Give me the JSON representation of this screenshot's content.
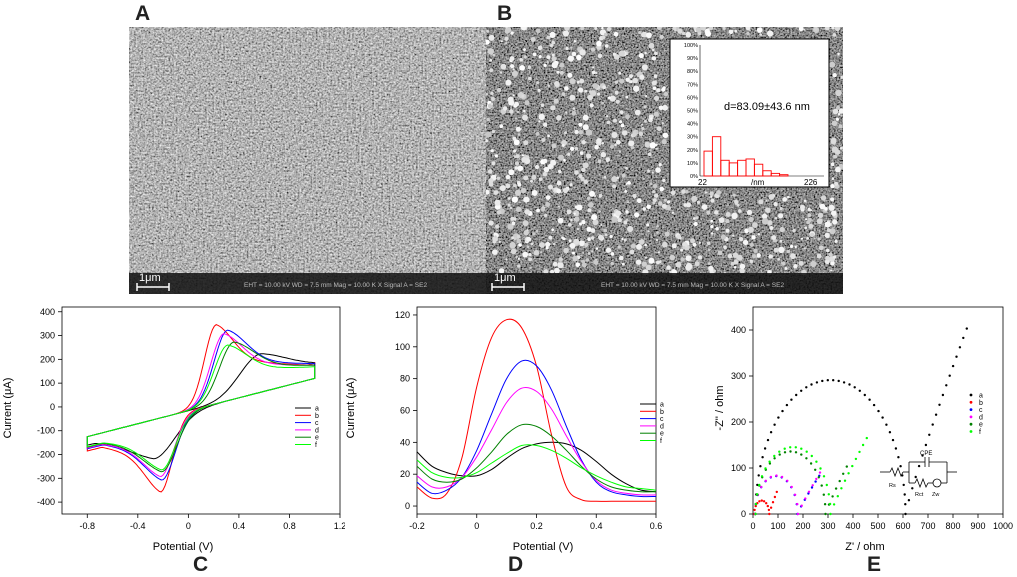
{
  "panel_letters": {
    "a": "A",
    "b": "B",
    "c": "C",
    "d": "D",
    "e": "E"
  },
  "colors": {
    "a": "#000000",
    "b": "#ff0000",
    "c": "#0000ff",
    "d": "#ff00ff",
    "e": "#008000",
    "f": "#00ff00",
    "inset_bars": "#ff0000"
  },
  "sem": {
    "scale_label_a": "1μm",
    "scale_label_b": "1μm",
    "info_text_a": "EHT = 10.00 kV    WD = 7.5 mm    Mag = 10.00 K X    Signal A = SE2",
    "info_text_b": "EHT = 10.00 kV    WD = 7.5 mm    Mag = 10.00 K X    Signal A = SE2"
  },
  "chart_data": [
    {
      "id": "C",
      "type": "line",
      "xlabel": "Potential (V)",
      "ylabel": "Current (μA)",
      "xlim": [
        -1.0,
        1.2
      ],
      "ylim": [
        -450,
        420
      ],
      "xticks": [
        -0.8,
        -0.4,
        0.0,
        0.4,
        0.8,
        1.2
      ],
      "yticks": [
        -400,
        -300,
        -200,
        -100,
        0,
        100,
        200,
        300,
        400
      ],
      "legend_position": "right",
      "series": [
        {
          "name": "a",
          "color": "#000000",
          "anodic_peak": [
            0.57,
            225
          ],
          "cathodic_peak": [
            -0.27,
            -215
          ]
        },
        {
          "name": "b",
          "color": "#ff0000",
          "anodic_peak": [
            0.22,
            348
          ],
          "cathodic_peak": [
            -0.22,
            -355
          ]
        },
        {
          "name": "c",
          "color": "#0000ff",
          "anodic_peak": [
            0.31,
            325
          ],
          "cathodic_peak": [
            -0.21,
            -305
          ]
        },
        {
          "name": "d",
          "color": "#ff00ff",
          "anodic_peak": [
            0.28,
            310
          ],
          "cathodic_peak": [
            -0.22,
            -290
          ]
        },
        {
          "name": "e",
          "color": "#008000",
          "anodic_peak": [
            0.36,
            275
          ],
          "cathodic_peak": [
            -0.21,
            -270
          ]
        },
        {
          "name": "f",
          "color": "#00ff00",
          "anodic_peak": [
            0.31,
            262
          ],
          "cathodic_peak": [
            -0.21,
            -262
          ]
        }
      ]
    },
    {
      "id": "D",
      "type": "line",
      "xlabel": "Potential (V)",
      "ylabel": "Current (μA)",
      "xlim": [
        -0.2,
        0.6
      ],
      "ylim": [
        -5,
        125
      ],
      "xticks": [
        -0.2,
        0.0,
        0.2,
        0.4,
        0.6
      ],
      "yticks": [
        0,
        20,
        40,
        60,
        80,
        100,
        120
      ],
      "legend_position": "right",
      "series": [
        {
          "name": "a",
          "color": "#000000",
          "x": [
            -0.2,
            -0.15,
            -0.1,
            -0.05,
            0.0,
            0.05,
            0.1,
            0.15,
            0.2,
            0.25,
            0.3,
            0.35,
            0.4,
            0.45,
            0.5,
            0.55,
            0.6
          ],
          "y": [
            34,
            25,
            21,
            19,
            19,
            23,
            30,
            36,
            39,
            40,
            39,
            35,
            28,
            20,
            14,
            10,
            9
          ]
        },
        {
          "name": "b",
          "color": "#ff0000",
          "x": [
            -0.2,
            -0.15,
            -0.1,
            -0.05,
            0.0,
            0.05,
            0.1,
            0.15,
            0.2,
            0.25,
            0.3,
            0.35,
            0.4,
            0.45,
            0.5,
            0.55,
            0.6
          ],
          "y": [
            12,
            5,
            8,
            30,
            75,
            106,
            117,
            112,
            88,
            45,
            12,
            4,
            3,
            3,
            3,
            3,
            3
          ]
        },
        {
          "name": "c",
          "color": "#0000ff",
          "x": [
            -0.2,
            -0.15,
            -0.1,
            -0.05,
            0.0,
            0.05,
            0.1,
            0.15,
            0.2,
            0.25,
            0.3,
            0.35,
            0.4,
            0.45,
            0.5,
            0.55,
            0.6
          ],
          "y": [
            15,
            8,
            10,
            18,
            35,
            58,
            80,
            91,
            88,
            73,
            50,
            29,
            15,
            9,
            7,
            6,
            6
          ]
        },
        {
          "name": "d",
          "color": "#ff00ff",
          "x": [
            -0.2,
            -0.15,
            -0.1,
            -0.05,
            0.0,
            0.05,
            0.1,
            0.15,
            0.2,
            0.25,
            0.3,
            0.35,
            0.4,
            0.45,
            0.5,
            0.55,
            0.6
          ],
          "y": [
            19,
            12,
            12,
            18,
            31,
            48,
            65,
            74,
            72,
            61,
            44,
            28,
            16,
            10,
            8,
            7,
            7
          ]
        },
        {
          "name": "e",
          "color": "#008000",
          "x": [
            -0.2,
            -0.15,
            -0.1,
            -0.05,
            0.0,
            0.05,
            0.1,
            0.15,
            0.2,
            0.25,
            0.3,
            0.35,
            0.4,
            0.45,
            0.5,
            0.55,
            0.6
          ],
          "y": [
            25,
            17,
            15,
            17,
            24,
            34,
            45,
            51,
            50,
            44,
            35,
            25,
            17,
            12,
            10,
            9,
            9
          ]
        },
        {
          "name": "f",
          "color": "#00ff00",
          "x": [
            -0.2,
            -0.15,
            -0.1,
            -0.05,
            0.0,
            0.05,
            0.1,
            0.15,
            0.2,
            0.25,
            0.3,
            0.35,
            0.4,
            0.45,
            0.5,
            0.55,
            0.6
          ],
          "y": [
            29,
            21,
            18,
            18,
            21,
            27,
            33,
            38,
            38,
            35,
            30,
            24,
            19,
            15,
            12,
            11,
            10
          ]
        }
      ]
    },
    {
      "id": "E",
      "type": "scatter",
      "xlabel": "Z' / ohm",
      "ylabel": "-Z'' / ohm",
      "xlim": [
        0,
        1000
      ],
      "ylim": [
        0,
        450
      ],
      "xticks": [
        0,
        100,
        200,
        300,
        400,
        500,
        600,
        700,
        800,
        900,
        1000
      ],
      "yticks": [
        0,
        100,
        200,
        300,
        400
      ],
      "legend_position": "right",
      "circuit_labels": {
        "cpe": "CPE",
        "rs": "Rs",
        "rct": "Rct",
        "zw": "Zw"
      },
      "series": [
        {
          "name": "a",
          "color": "#000000",
          "semicircle_diameter": 600,
          "semicircle_start": 10,
          "tail_end": [
            855,
            403
          ]
        },
        {
          "name": "b",
          "color": "#ff0000",
          "semicircle_diameter": 60,
          "semicircle_start": 5,
          "tail_end": [
            95,
            48
          ]
        },
        {
          "name": "c",
          "color": "#0000ff",
          "semicircle_diameter": 170,
          "semicircle_start": 8,
          "tail_end": [
            265,
            83
          ]
        },
        {
          "name": "d",
          "color": "#ff00ff",
          "semicircle_diameter": 172,
          "semicircle_start": 8,
          "tail_end": [
            268,
            90
          ]
        },
        {
          "name": "e",
          "color": "#008000",
          "semicircle_diameter": 280,
          "semicircle_start": 10,
          "tail_end": [
            375,
            103
          ]
        },
        {
          "name": "f",
          "color": "#00ff00",
          "semicircle_diameter": 300,
          "semicircle_start": 10,
          "tail_end": [
            455,
            165
          ]
        }
      ]
    },
    {
      "id": "B-inset",
      "type": "bar",
      "annotation": "d=83.09±43.6 nm",
      "xlabel": "/nm",
      "xtick_labels": [
        "22",
        "226"
      ],
      "yticks": [
        "0%",
        "10%",
        "20%",
        "30%",
        "40%",
        "50%",
        "60%",
        "70%",
        "80%",
        "90%",
        "100%"
      ],
      "ylim": [
        0,
        100
      ],
      "values": [
        19,
        30,
        12,
        10,
        12,
        13,
        9,
        4,
        2,
        1
      ]
    }
  ]
}
